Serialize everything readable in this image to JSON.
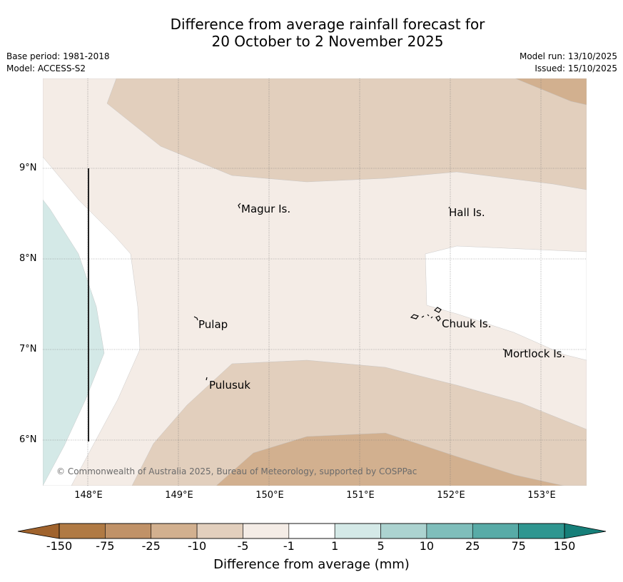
{
  "header": {
    "title_line1": "Difference from average rainfall forecast for",
    "title_line2": "20 October to 2 November 2025",
    "base_period": "Base period: 1981-2018",
    "model": "Model: ACCESS-S2",
    "model_run": "Model run: 13/10/2025",
    "issued": "Issued: 15/10/2025"
  },
  "map": {
    "lat_labels": [
      "9°N",
      "8°N",
      "7°N",
      "6°N"
    ],
    "lon_labels": [
      "148°E",
      "149°E",
      "150°E",
      "151°E",
      "152°E",
      "153°E"
    ],
    "places": [
      "Magur Is.",
      "Hall Is.",
      "Pulap",
      "Chuuk Is.",
      "Mortlock Is.",
      "Pulusuk"
    ],
    "copyright": "© Commonwealth of Australia 2025, Bureau of Meteorology, supported by COSPPac",
    "colors": {
      "dry_lt": "#f4ece6",
      "dry_med": "#e2cfbd",
      "dry_dark": "#d2b08f",
      "wet_lt": "#d4e9e7"
    }
  },
  "colorbar": {
    "labels": [
      "-150",
      "-75",
      "-25",
      "-10",
      "-5",
      "-1",
      "1",
      "5",
      "10",
      "25",
      "75",
      "150"
    ],
    "colors": [
      "#b07a44",
      "#c09268",
      "#d2b08f",
      "#e2cfbd",
      "#f4ece6",
      "#ffffff",
      "#d4e9e7",
      "#acd3d0",
      "#7fbebb",
      "#58aba7",
      "#2f9690"
    ],
    "min_color": "#a0632d",
    "max_color": "#167f79",
    "title": "Difference from average (mm)"
  }
}
